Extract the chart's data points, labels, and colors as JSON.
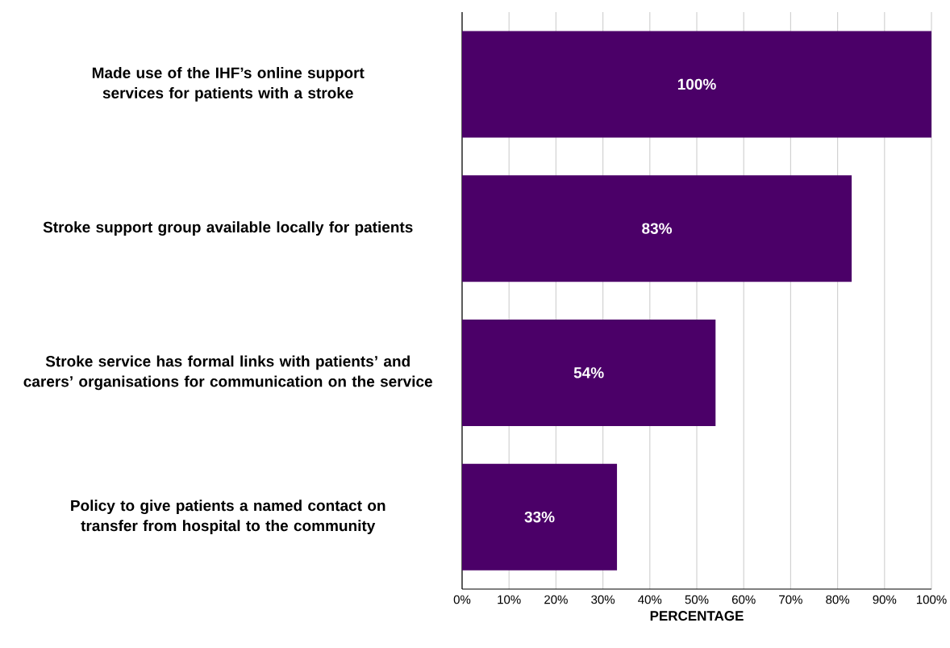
{
  "chart_data": {
    "type": "bar",
    "orientation": "horizontal",
    "xlabel": "PERCENTAGE",
    "categories": [
      "Made use of the IHF’s online support services for patients with a stroke",
      "Stroke support group available locally for patients",
      "Stroke service has formal links with patients’ and carers’ organisations for communication on the service",
      "Policy to give patients a named contact on transfer from hospital to the community"
    ],
    "values": [
      100,
      83,
      54,
      33
    ],
    "value_labels": [
      "100%",
      "83%",
      "54%",
      "33%"
    ],
    "color": "#4b0068",
    "xlim": [
      0,
      100
    ],
    "xticks": [
      {
        "value": 0,
        "label": "0%"
      },
      {
        "value": 10,
        "label": "10%"
      },
      {
        "value": 20,
        "label": "20%"
      },
      {
        "value": 30,
        "label": "30%"
      },
      {
        "value": 40,
        "label": "40%"
      },
      {
        "value": 50,
        "label": "50%"
      },
      {
        "value": 60,
        "label": "60%"
      },
      {
        "value": 70,
        "label": "70%"
      },
      {
        "value": 80,
        "label": "80%"
      },
      {
        "value": 90,
        "label": "90%"
      },
      {
        "value": 100,
        "label": "100%"
      }
    ],
    "grid": "x"
  }
}
